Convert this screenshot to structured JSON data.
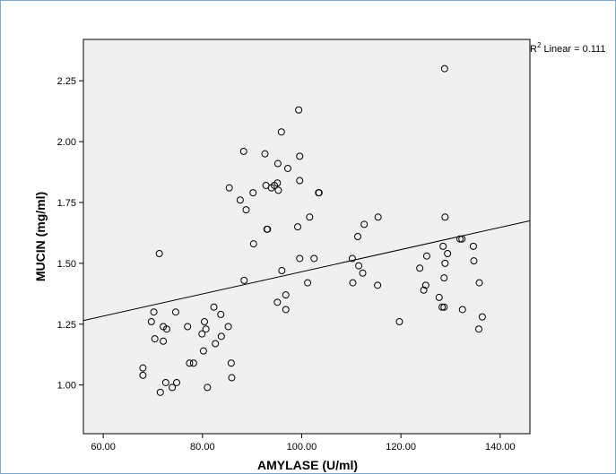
{
  "chart_data": {
    "type": "scatter",
    "title": "",
    "xlabel": "AMYLASE (U/ml)",
    "ylabel": "MUCIN (mg/ml)",
    "xlim": [
      56,
      146
    ],
    "ylim": [
      0.8,
      2.42
    ],
    "x_ticks": [
      60,
      80,
      100,
      120,
      140
    ],
    "x_tick_labels": [
      "60.00",
      "80.00",
      "100.00",
      "120.00",
      "140.00"
    ],
    "y_ticks": [
      1.0,
      1.25,
      1.5,
      1.75,
      2.0,
      2.25
    ],
    "y_tick_labels": [
      "1.00",
      "1.25",
      "1.50",
      "1.75",
      "2.00",
      "2.25"
    ],
    "grid": false,
    "fit_line": {
      "type": "linear",
      "start": [
        56,
        1.265
      ],
      "end": [
        146,
        1.675
      ],
      "label_prefix": "R",
      "label_sup": "2",
      "label_rest": " Linear = 0.111"
    },
    "points": [
      [
        68.0,
        1.07
      ],
      [
        68.0,
        1.04
      ],
      [
        69.7,
        1.26
      ],
      [
        70.2,
        1.3
      ],
      [
        70.4,
        1.19
      ],
      [
        71.3,
        1.54
      ],
      [
        71.5,
        0.97
      ],
      [
        72.1,
        1.24
      ],
      [
        72.1,
        1.18
      ],
      [
        72.6,
        1.01
      ],
      [
        72.8,
        1.23
      ],
      [
        73.9,
        0.99
      ],
      [
        74.6,
        1.3
      ],
      [
        74.8,
        1.01
      ],
      [
        77.0,
        1.24
      ],
      [
        77.4,
        1.09
      ],
      [
        78.2,
        1.09
      ],
      [
        79.9,
        1.21
      ],
      [
        80.2,
        1.14
      ],
      [
        80.4,
        1.26
      ],
      [
        80.7,
        1.23
      ],
      [
        81.0,
        0.99
      ],
      [
        82.3,
        1.32
      ],
      [
        82.6,
        1.17
      ],
      [
        83.7,
        1.29
      ],
      [
        83.8,
        1.2
      ],
      [
        85.2,
        1.24
      ],
      [
        85.4,
        1.81
      ],
      [
        85.8,
        1.09
      ],
      [
        85.9,
        1.03
      ],
      [
        87.6,
        1.76
      ],
      [
        88.3,
        1.96
      ],
      [
        88.4,
        1.43
      ],
      [
        88.8,
        1.72
      ],
      [
        90.2,
        1.79
      ],
      [
        90.3,
        1.58
      ],
      [
        92.6,
        1.95
      ],
      [
        92.8,
        1.82
      ],
      [
        93.0,
        1.64
      ],
      [
        93.1,
        1.64
      ],
      [
        93.9,
        1.81
      ],
      [
        94.5,
        1.82
      ],
      [
        95.1,
        1.83
      ],
      [
        95.2,
        1.91
      ],
      [
        95.3,
        1.8
      ],
      [
        95.1,
        1.34
      ],
      [
        95.9,
        2.04
      ],
      [
        96.0,
        1.47
      ],
      [
        96.8,
        1.37
      ],
      [
        96.8,
        1.31
      ],
      [
        97.2,
        1.89
      ],
      [
        99.2,
        1.65
      ],
      [
        99.4,
        2.13
      ],
      [
        99.6,
        1.94
      ],
      [
        99.6,
        1.84
      ],
      [
        99.6,
        1.52
      ],
      [
        101.2,
        1.42
      ],
      [
        101.6,
        1.69
      ],
      [
        102.5,
        1.52
      ],
      [
        103.4,
        1.79
      ],
      [
        103.5,
        1.79
      ],
      [
        110.2,
        1.52
      ],
      [
        110.3,
        1.42
      ],
      [
        111.3,
        1.61
      ],
      [
        111.5,
        1.49
      ],
      [
        112.3,
        1.46
      ],
      [
        112.6,
        1.66
      ],
      [
        115.3,
        1.41
      ],
      [
        115.4,
        1.69
      ],
      [
        119.7,
        1.26
      ],
      [
        123.8,
        1.48
      ],
      [
        124.6,
        1.39
      ],
      [
        125.0,
        1.41
      ],
      [
        125.2,
        1.53
      ],
      [
        127.7,
        1.36
      ],
      [
        128.3,
        1.32
      ],
      [
        128.5,
        1.57
      ],
      [
        128.7,
        1.44
      ],
      [
        128.7,
        1.32
      ],
      [
        128.9,
        1.5
      ],
      [
        128.9,
        1.69
      ],
      [
        128.8,
        2.3
      ],
      [
        129.4,
        1.54
      ],
      [
        131.9,
        1.6
      ],
      [
        132.3,
        1.6
      ],
      [
        132.4,
        1.31
      ],
      [
        134.6,
        1.57
      ],
      [
        134.7,
        1.51
      ],
      [
        135.7,
        1.23
      ],
      [
        135.8,
        1.42
      ],
      [
        136.4,
        1.28
      ]
    ]
  }
}
